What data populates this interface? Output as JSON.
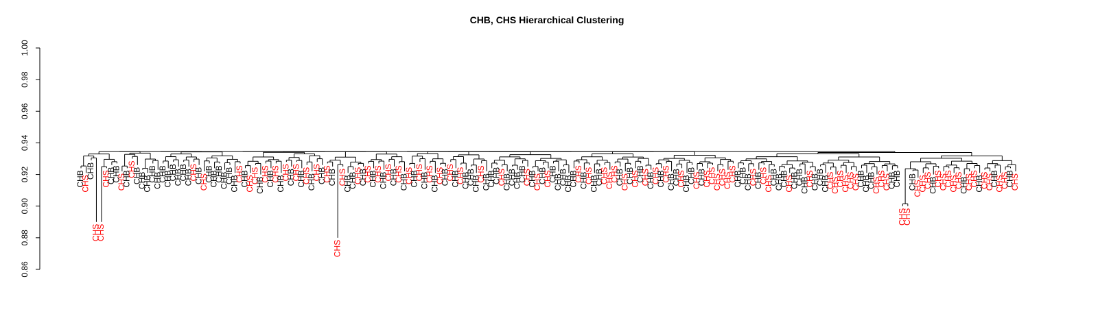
{
  "chart_data": {
    "type": "dendrogram",
    "title": "CHB, CHS Hierarchical Clustering",
    "ylim": [
      0.86,
      1.0
    ],
    "y_ticks": [
      "0.86",
      "0.88",
      "0.90",
      "0.92",
      "0.94",
      "0.96",
      "0.98",
      "1.00"
    ],
    "y_tick_values": [
      0.86,
      0.88,
      0.9,
      0.92,
      0.94,
      0.96,
      0.98,
      1.0
    ],
    "colors": {
      "CHB": "#000000",
      "CHS": "#ff0000"
    },
    "leaves": [
      {
        "label": "CHB",
        "h": 0.924
      },
      {
        "label": "CHS",
        "h": 0.921
      },
      {
        "label": "CHB",
        "h": 0.929
      },
      {
        "label": "CHS",
        "h": 0.89
      },
      {
        "label": "CHS",
        "h": 0.89
      },
      {
        "label": "CHS",
        "h": 0.924
      },
      {
        "label": "CHB",
        "h": 0.926
      },
      {
        "label": "CHB",
        "h": 0.927
      },
      {
        "label": "CHS",
        "h": 0.922
      },
      {
        "label": "CHB",
        "h": 0.924
      },
      {
        "label": "CHS",
        "h": 0.93
      },
      {
        "label": "CHB",
        "h": 0.926
      },
      {
        "label": "CHB",
        "h": 0.923
      },
      {
        "label": "CHB",
        "h": 0.921
      },
      {
        "label": "CHB",
        "h": 0.927
      },
      {
        "label": "CHB",
        "h": 0.923
      },
      {
        "label": "CHB",
        "h": 0.927
      },
      {
        "label": "CHB",
        "h": 0.924
      },
      {
        "label": "CHB",
        "h": 0.928
      },
      {
        "label": "CHB",
        "h": 0.925
      },
      {
        "label": "CHB",
        "h": 0.928
      },
      {
        "label": "CHB",
        "h": 0.925
      },
      {
        "label": "CHS",
        "h": 0.928
      },
      {
        "label": "CHB",
        "h": 0.926
      },
      {
        "label": "CHS",
        "h": 0.922
      },
      {
        "label": "CHB",
        "h": 0.927
      },
      {
        "label": "CHB",
        "h": 0.924
      },
      {
        "label": "CHB",
        "h": 0.927
      },
      {
        "label": "CHB",
        "h": 0.923
      },
      {
        "label": "CHB",
        "h": 0.926
      },
      {
        "label": "CHB",
        "h": 0.921
      },
      {
        "label": "CHS",
        "h": 0.927
      },
      {
        "label": "CHB",
        "h": 0.924
      },
      {
        "label": "CHS",
        "h": 0.921
      },
      {
        "label": "CHS",
        "h": 0.926
      },
      {
        "label": "CHB",
        "h": 0.92
      },
      {
        "label": "CHS",
        "h": 0.927
      },
      {
        "label": "CHB",
        "h": 0.924
      },
      {
        "label": "CHS",
        "h": 0.927
      },
      {
        "label": "CHB",
        "h": 0.921
      },
      {
        "label": "CHS",
        "h": 0.928
      },
      {
        "label": "CHB",
        "h": 0.925
      },
      {
        "label": "CHS",
        "h": 0.928
      },
      {
        "label": "CHB",
        "h": 0.924
      },
      {
        "label": "CHS",
        "h": 0.926
      },
      {
        "label": "CHB",
        "h": 0.922
      },
      {
        "label": "CHS",
        "h": 0.928
      },
      {
        "label": "CHB",
        "h": 0.926
      },
      {
        "label": "CHS",
        "h": 0.927
      },
      {
        "label": "CHB",
        "h": 0.925
      },
      {
        "label": "CHS",
        "h": 0.88
      },
      {
        "label": "CHS",
        "h": 0.925
      },
      {
        "label": "CHB",
        "h": 0.921
      },
      {
        "label": "CHB",
        "h": 0.923
      },
      {
        "label": "CHS",
        "h": 0.926
      },
      {
        "label": "CHB",
        "h": 0.925
      },
      {
        "label": "CHS",
        "h": 0.927
      },
      {
        "label": "CHB",
        "h": 0.924
      },
      {
        "label": "CHS",
        "h": 0.927
      },
      {
        "label": "CHB",
        "h": 0.923
      },
      {
        "label": "CHS",
        "h": 0.928
      },
      {
        "label": "CHB",
        "h": 0.925
      },
      {
        "label": "CHS",
        "h": 0.927
      },
      {
        "label": "CHB",
        "h": 0.922
      },
      {
        "label": "CHS",
        "h": 0.926
      },
      {
        "label": "CHB",
        "h": 0.924
      },
      {
        "label": "CHS",
        "h": 0.928
      },
      {
        "label": "CHB",
        "h": 0.923
      },
      {
        "label": "CHS",
        "h": 0.927
      },
      {
        "label": "CHB",
        "h": 0.921
      },
      {
        "label": "CHS",
        "h": 0.926
      },
      {
        "label": "CHB",
        "h": 0.925
      },
      {
        "label": "CHS",
        "h": 0.928
      },
      {
        "label": "CHB",
        "h": 0.924
      },
      {
        "label": "CHS",
        "h": 0.926
      },
      {
        "label": "CHB",
        "h": 0.923
      },
      {
        "label": "CHB",
        "h": 0.925
      },
      {
        "label": "CHB",
        "h": 0.921
      },
      {
        "label": "CHS",
        "h": 0.927
      },
      {
        "label": "CHB",
        "h": 0.922
      },
      {
        "label": "CHB",
        "h": 0.924
      },
      {
        "label": "CHB",
        "h": 0.926
      },
      {
        "label": "CHS",
        "h": 0.925
      },
      {
        "label": "CHB",
        "h": 0.922
      },
      {
        "label": "CHB",
        "h": 0.925
      },
      {
        "label": "CHB",
        "h": 0.923
      },
      {
        "label": "CHB",
        "h": 0.927
      },
      {
        "label": "CHS",
        "h": 0.925
      },
      {
        "label": "CHB",
        "h": 0.924
      },
      {
        "label": "CHS",
        "h": 0.922
      },
      {
        "label": "CHB",
        "h": 0.926
      },
      {
        "label": "CHS",
        "h": 0.924
      },
      {
        "label": "CHB",
        "h": 0.927
      },
      {
        "label": "CHB",
        "h": 0.922
      },
      {
        "label": "CHB",
        "h": 0.925
      },
      {
        "label": "CHB",
        "h": 0.921
      },
      {
        "label": "CHB",
        "h": 0.924
      },
      {
        "label": "CHS",
        "h": 0.927
      },
      {
        "label": "CHB",
        "h": 0.923
      },
      {
        "label": "CHS",
        "h": 0.926
      },
      {
        "label": "CHB",
        "h": 0.921
      },
      {
        "label": "CHB",
        "h": 0.925
      },
      {
        "label": "CHS",
        "h": 0.926
      },
      {
        "label": "CHS",
        "h": 0.923
      },
      {
        "label": "CHS",
        "h": 0.927
      },
      {
        "label": "CHB",
        "h": 0.925
      },
      {
        "label": "CHS",
        "h": 0.922
      },
      {
        "label": "CHB",
        "h": 0.926
      },
      {
        "label": "CHS",
        "h": 0.924
      },
      {
        "label": "CHB",
        "h": 0.927
      },
      {
        "label": "CHS",
        "h": 0.925
      },
      {
        "label": "CHB",
        "h": 0.923
      },
      {
        "label": "CHS",
        "h": 0.926
      },
      {
        "label": "CHB",
        "h": 0.924
      },
      {
        "label": "CHS",
        "h": 0.927
      },
      {
        "label": "CHB",
        "h": 0.922
      },
      {
        "label": "CHB",
        "h": 0.925
      },
      {
        "label": "CHS",
        "h": 0.924
      },
      {
        "label": "CHB",
        "h": 0.921
      },
      {
        "label": "CHB",
        "h": 0.926
      },
      {
        "label": "CHS",
        "h": 0.923
      },
      {
        "label": "CHB",
        "h": 0.925
      },
      {
        "label": "CHS",
        "h": 0.924
      },
      {
        "label": "CHS",
        "h": 0.926
      },
      {
        "label": "CHS",
        "h": 0.922
      },
      {
        "label": "CHS",
        "h": 0.925
      },
      {
        "label": "CHS",
        "h": 0.923
      },
      {
        "label": "CHS",
        "h": 0.927
      },
      {
        "label": "CHB",
        "h": 0.924
      },
      {
        "label": "CHB",
        "h": 0.926
      },
      {
        "label": "CHB",
        "h": 0.922
      },
      {
        "label": "CHS",
        "h": 0.925
      },
      {
        "label": "CHB",
        "h": 0.923
      },
      {
        "label": "CHS",
        "h": 0.926
      },
      {
        "label": "CHS",
        "h": 0.921
      },
      {
        "label": "CHB",
        "h": 0.925
      },
      {
        "label": "CHB",
        "h": 0.922
      },
      {
        "label": "CHB",
        "h": 0.924
      },
      {
        "label": "CHS",
        "h": 0.921
      },
      {
        "label": "CHB",
        "h": 0.923
      },
      {
        "label": "CHB",
        "h": 0.925
      },
      {
        "label": "CHB",
        "h": 0.92
      },
      {
        "label": "CHS",
        "h": 0.924
      },
      {
        "label": "CHB",
        "h": 0.922
      },
      {
        "label": "CHB",
        "h": 0.925
      },
      {
        "label": "CHB",
        "h": 0.921
      },
      {
        "label": "CHS",
        "h": 0.923
      },
      {
        "label": "CHS",
        "h": 0.92
      },
      {
        "label": "CHS",
        "h": 0.924
      },
      {
        "label": "CHS",
        "h": 0.921
      },
      {
        "label": "CHS",
        "h": 0.923
      },
      {
        "label": "CHS",
        "h": 0.922
      },
      {
        "label": "CHB",
        "h": 0.924
      },
      {
        "label": "CHB",
        "h": 0.921
      },
      {
        "label": "CHB",
        "h": 0.923
      },
      {
        "label": "CHS",
        "h": 0.92
      },
      {
        "label": "CHS",
        "h": 0.924
      },
      {
        "label": "CHS",
        "h": 0.922
      },
      {
        "label": "CHB",
        "h": 0.923
      },
      {
        "label": "CHB",
        "h": 0.924
      },
      {
        "label": "CHS",
        "h": 0.9
      },
      {
        "label": "CHS",
        "h": 0.9
      },
      {
        "label": "CHB",
        "h": 0.922
      },
      {
        "label": "CHS",
        "h": 0.918
      },
      {
        "label": "CHS",
        "h": 0.921
      },
      {
        "label": "CHS",
        "h": 0.923
      },
      {
        "label": "CHB",
        "h": 0.92
      },
      {
        "label": "CHS",
        "h": 0.924
      },
      {
        "label": "CHS",
        "h": 0.922
      },
      {
        "label": "CHS",
        "h": 0.924
      },
      {
        "label": "CHS",
        "h": 0.921
      },
      {
        "label": "CHS",
        "h": 0.923
      },
      {
        "label": "CHB",
        "h": 0.92
      },
      {
        "label": "CHS",
        "h": 0.922
      },
      {
        "label": "CHS",
        "h": 0.924
      },
      {
        "label": "CHB",
        "h": 0.921
      },
      {
        "label": "CHS",
        "h": 0.923
      },
      {
        "label": "CHS",
        "h": 0.922
      },
      {
        "label": "CHB",
        "h": 0.924
      },
      {
        "label": "CHS",
        "h": 0.921
      },
      {
        "label": "CHS",
        "h": 0.923
      },
      {
        "label": "CHB",
        "h": 0.924
      },
      {
        "label": "CHS",
        "h": 0.922
      }
    ]
  }
}
